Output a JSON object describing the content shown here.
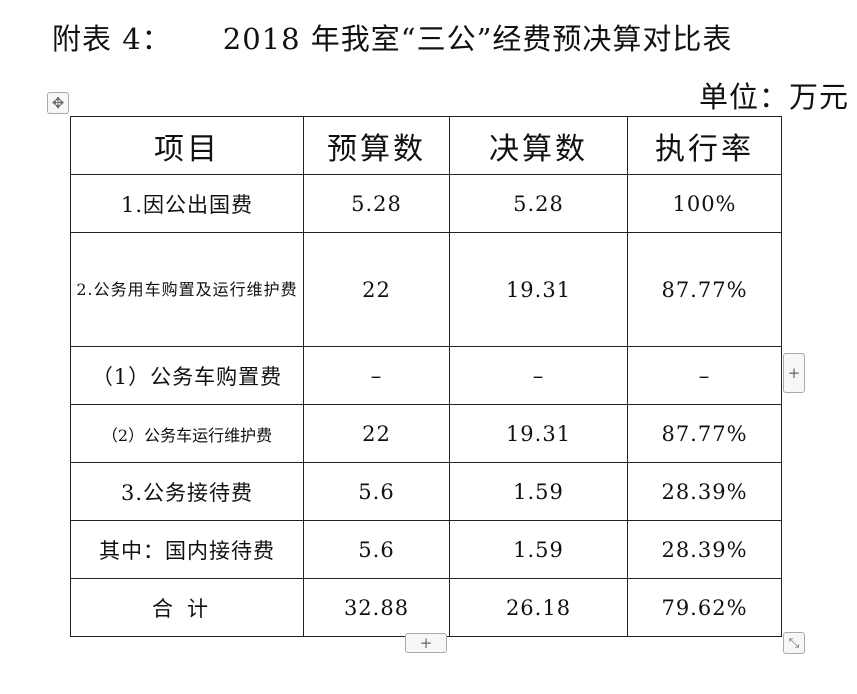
{
  "document": {
    "title": "附表 4：     2018 年我室“三公”经费预决算对比表",
    "unit": "单位：万元"
  },
  "table": {
    "headers": [
      "项目",
      "预算数",
      "决算数",
      "执行率"
    ],
    "rows": [
      {
        "item": "1.因公出国费",
        "budget": "5.28",
        "actual": "5.28",
        "rate": "100%"
      },
      {
        "item": "2.公务用车购置及运行维护费",
        "budget": "22",
        "actual": "19.31",
        "rate": "87.77%"
      },
      {
        "item": "（1）公务车购置费",
        "budget": "–",
        "actual": "–",
        "rate": "–"
      },
      {
        "item": "（2）公务车运行维护费",
        "budget": "22",
        "actual": "19.31",
        "rate": "87.77%"
      },
      {
        "item": "3.公务接待费",
        "budget": "5.6",
        "actual": "1.59",
        "rate": "28.39%"
      },
      {
        "item": "其中：国内接待费",
        "budget": "5.6",
        "actual": "1.59",
        "rate": "28.39%"
      },
      {
        "item": "合计",
        "budget": "32.88",
        "actual": "26.18",
        "rate": "79.62%"
      }
    ]
  },
  "handles": {
    "move": "✥",
    "add_column": "+",
    "add_row": "+",
    "resize": "⤡"
  },
  "icons": {
    "move": "move-handle-icon",
    "add_column": "plus-icon",
    "add_row": "plus-icon",
    "resize": "resize-diagonal-icon"
  }
}
